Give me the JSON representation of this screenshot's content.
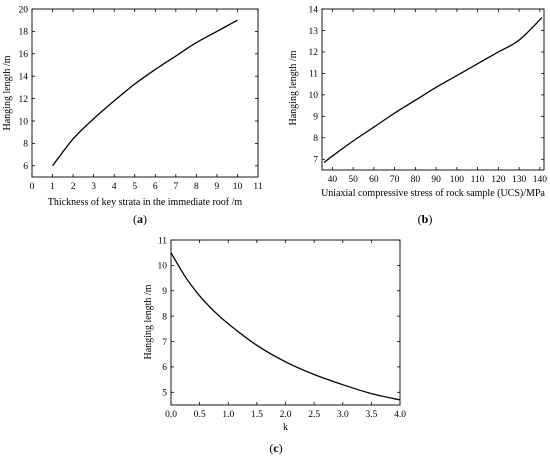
{
  "chart_data": [
    {
      "type": "line",
      "panel_label": "(a)",
      "panel_letter": "a",
      "xlabel": "Thickness of key strata in the immediate roof /m",
      "ylabel": "Hanging length /m",
      "xlim": [
        0,
        11
      ],
      "ylim": [
        5,
        20
      ],
      "xticks": [
        0,
        1,
        2,
        3,
        4,
        5,
        6,
        7,
        8,
        9,
        10,
        11
      ],
      "yticks": [
        6,
        8,
        10,
        12,
        14,
        16,
        18,
        20
      ],
      "x": [
        1,
        2,
        3,
        4,
        5,
        6,
        7,
        8,
        9,
        10
      ],
      "y": [
        6.0,
        8.4,
        10.2,
        11.8,
        13.3,
        14.6,
        15.8,
        17.0,
        18.0,
        19.0
      ],
      "grid": false
    },
    {
      "type": "line",
      "panel_label": "(b)",
      "panel_letter": "b",
      "xlabel": "Uniaxial compressive stress of rock sample (UCS)/MPa",
      "ylabel": "Hanging length /m",
      "xlim": [
        35,
        142
      ],
      "ylim": [
        6.5,
        14
      ],
      "xticks": [
        40,
        50,
        60,
        70,
        80,
        90,
        100,
        110,
        120,
        130,
        140
      ],
      "yticks": [
        7,
        8,
        9,
        10,
        11,
        12,
        13,
        14
      ],
      "x": [
        36,
        40,
        50,
        60,
        70,
        80,
        90,
        100,
        110,
        120,
        130,
        141
      ],
      "y": [
        6.85,
        7.15,
        7.85,
        8.5,
        9.15,
        9.75,
        10.35,
        10.9,
        11.45,
        12.0,
        12.55,
        13.6
      ],
      "grid": false
    },
    {
      "type": "line",
      "panel_label": "(c)",
      "panel_letter": "c",
      "xlabel": "k",
      "ylabel": "Hanging length /m",
      "xlim": [
        0,
        4.0
      ],
      "ylim": [
        4.5,
        11
      ],
      "xticks": [
        0.0,
        0.5,
        1.0,
        1.5,
        2.0,
        2.5,
        3.0,
        3.5,
        4.0
      ],
      "xticklabels": [
        "0.0",
        "0.5",
        "1.0",
        "1.5",
        "2.0",
        "2.5",
        "3.0",
        "3.5",
        "4.0"
      ],
      "yticks": [
        5,
        6,
        7,
        8,
        9,
        10,
        11
      ],
      "x": [
        0.0,
        0.25,
        0.5,
        0.75,
        1.0,
        1.5,
        2.0,
        2.5,
        3.0,
        3.5,
        4.0
      ],
      "y": [
        10.5,
        9.55,
        8.8,
        8.2,
        7.7,
        6.85,
        6.2,
        5.7,
        5.3,
        4.95,
        4.7
      ],
      "grid": false
    }
  ]
}
